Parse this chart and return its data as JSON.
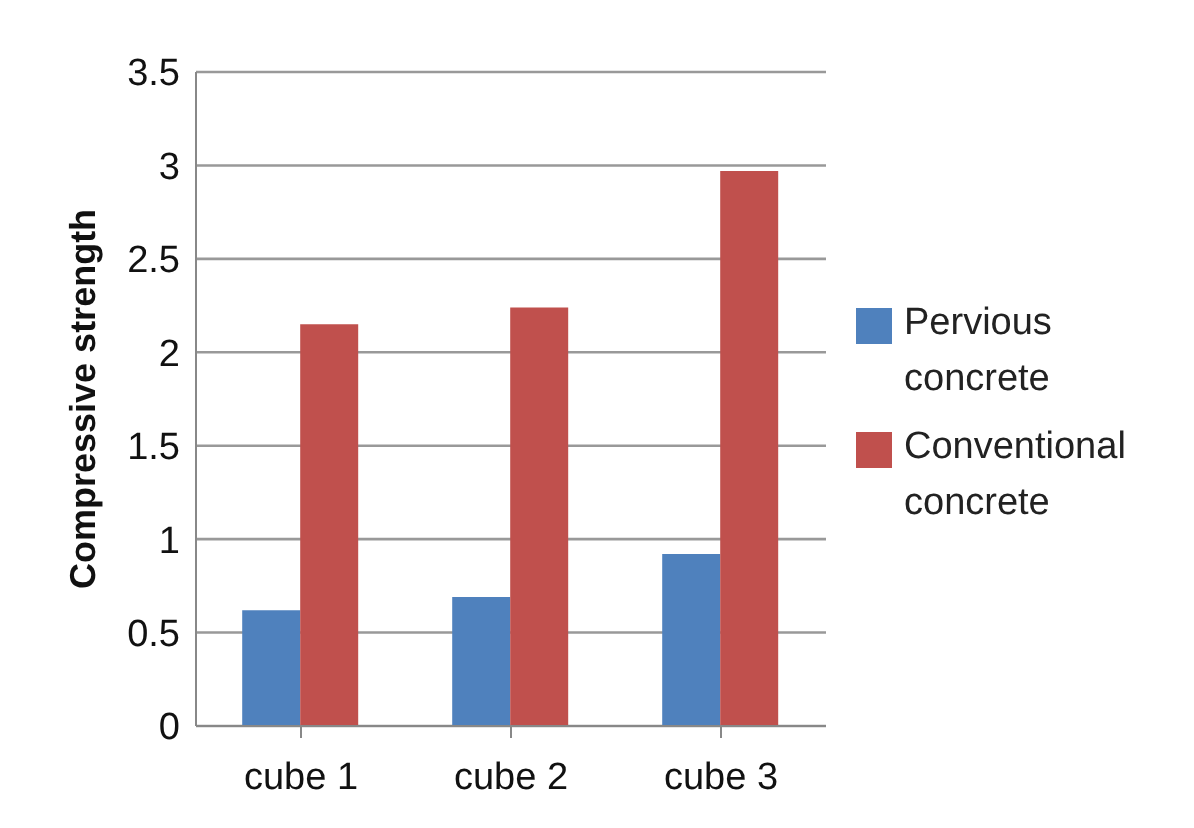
{
  "chart_data": {
    "type": "bar",
    "ylabel": "Compressive strength",
    "categories": [
      "cube 1",
      "cube 2",
      "cube 3"
    ],
    "series": [
      {
        "name": "Pervious concrete",
        "color": "#4f81bd",
        "values": [
          0.62,
          0.69,
          0.92
        ]
      },
      {
        "name": "Conventional concrete",
        "color": "#c0504d",
        "values": [
          2.15,
          2.24,
          2.97
        ]
      }
    ],
    "ylim": [
      0,
      3.5
    ],
    "yticks": [
      0,
      0.5,
      1,
      1.5,
      2,
      2.5,
      3,
      3.5
    ],
    "grid": "y",
    "legend": "right"
  }
}
